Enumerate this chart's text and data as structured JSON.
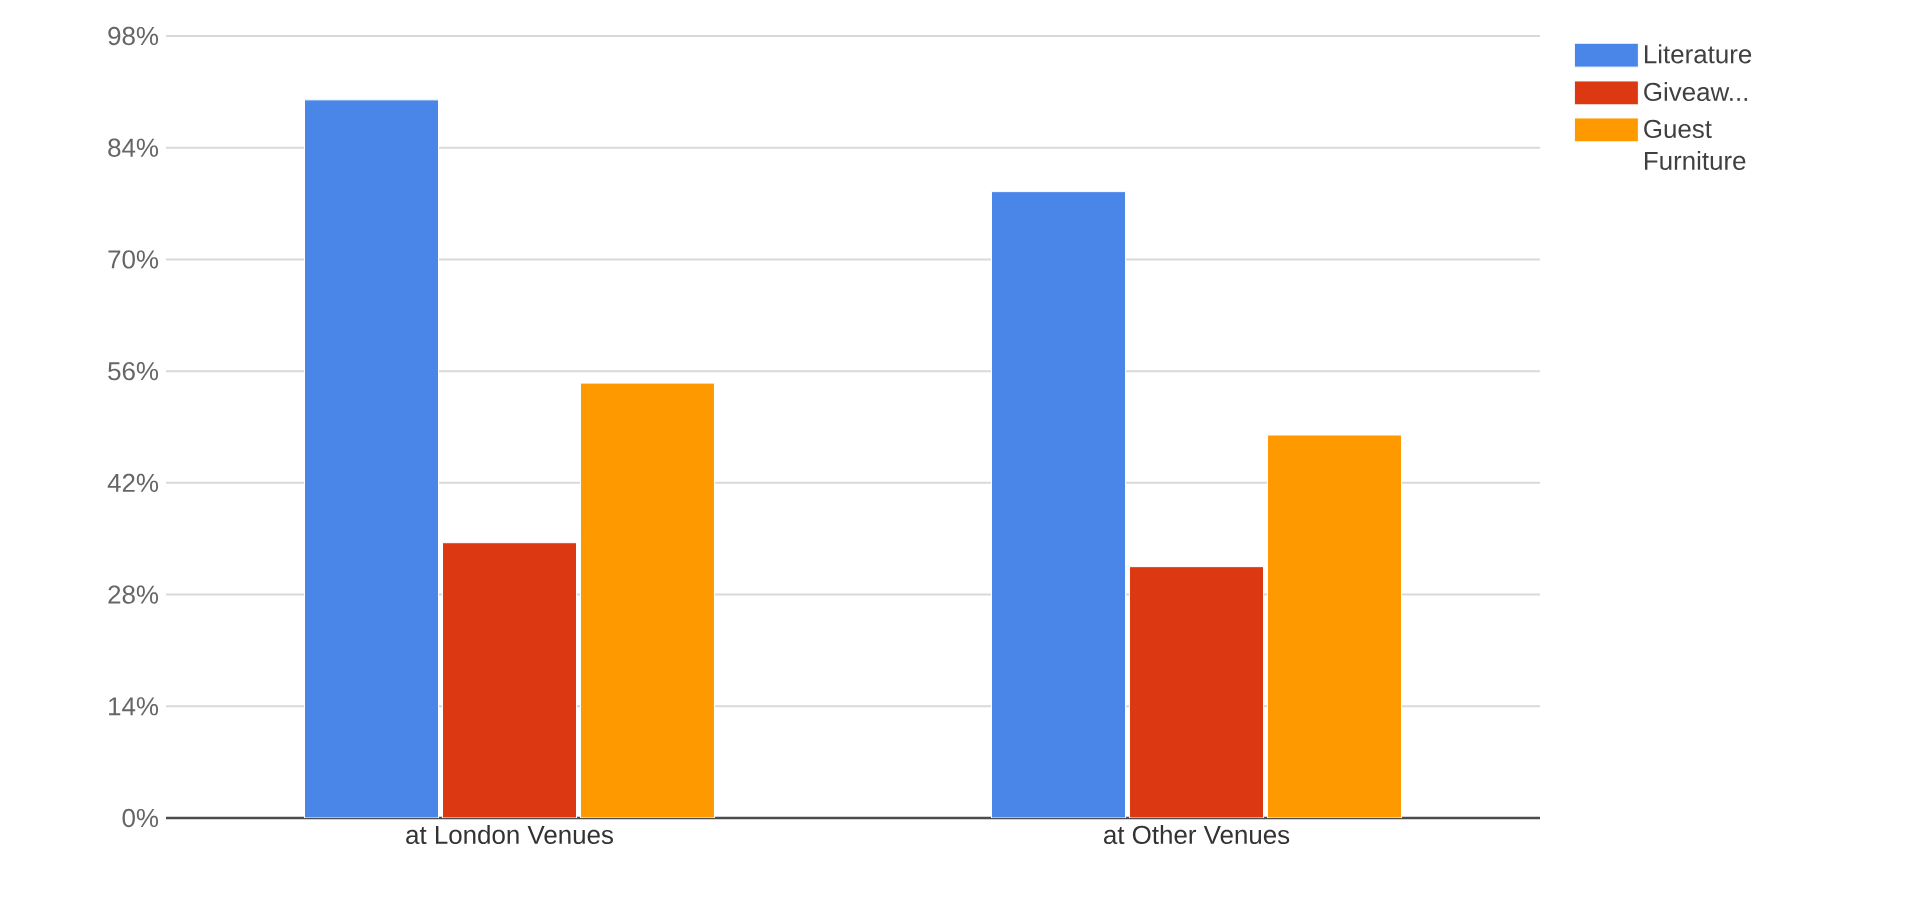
{
  "chart_data": {
    "type": "bar",
    "categories": [
      "at London Venues",
      "at Other Venues"
    ],
    "series": [
      {
        "name": "Literature",
        "color": "#4a86e8",
        "values": [
          90,
          78.5
        ]
      },
      {
        "name": "Giveaw...",
        "color": "#dc3912",
        "values": [
          34.5,
          31.5
        ]
      },
      {
        "name": "Guest Furniture",
        "color": "#ff9900",
        "values": [
          54.5,
          48
        ]
      }
    ],
    "ylim": [
      0,
      98
    ],
    "yticks": [
      {
        "value": 0,
        "label": "0%"
      },
      {
        "value": 14,
        "label": "14%"
      },
      {
        "value": 28,
        "label": "28%"
      },
      {
        "value": 42,
        "label": "42%"
      },
      {
        "value": 56,
        "label": "56%"
      },
      {
        "value": 70,
        "label": "70%"
      },
      {
        "value": 84,
        "label": "84%"
      },
      {
        "value": 98,
        "label": "98%"
      }
    ],
    "grid": "y",
    "legend": "top right"
  }
}
